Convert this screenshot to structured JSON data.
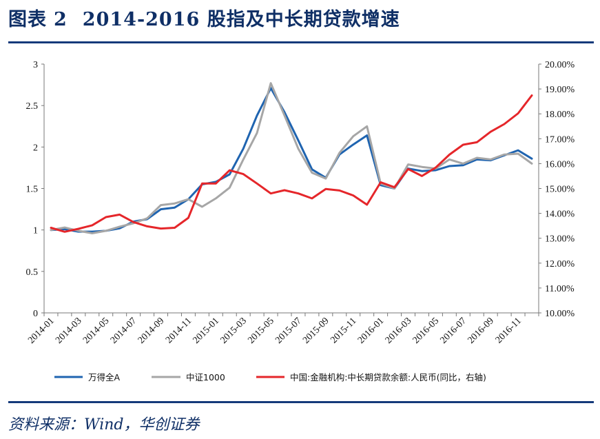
{
  "figure": {
    "label": "图表",
    "number": "2",
    "title": "2014-2016 股指及中长期贷款增速",
    "source": "资料来源：Wind，华创证券"
  },
  "colors": {
    "title": "#0f2f66",
    "rule": "#14397a",
    "series_blue": "#1f64b0",
    "series_gray": "#a6a6a6",
    "series_red": "#e5262a"
  },
  "chart_data": {
    "type": "line",
    "x": [
      "2014-01",
      "2014-02",
      "2014-03",
      "2014-04",
      "2014-05",
      "2014-06",
      "2014-07",
      "2014-08",
      "2014-09",
      "2014-10",
      "2014-11",
      "2014-12",
      "2015-01",
      "2015-02",
      "2015-03",
      "2015-04",
      "2015-05",
      "2015-06",
      "2015-07",
      "2015-08",
      "2015-09",
      "2015-10",
      "2015-11",
      "2015-12",
      "2016-01",
      "2016-02",
      "2016-03",
      "2016-04",
      "2016-05",
      "2016-06",
      "2016-07",
      "2016-08",
      "2016-09",
      "2016-10",
      "2016-11",
      "2016-12"
    ],
    "x_tick_labels": [
      "2014-01",
      "2014-03",
      "2014-05",
      "2014-07",
      "2014-09",
      "2014-11",
      "2015-01",
      "2015-03",
      "2015-05",
      "2015-07",
      "2015-09",
      "2015-11",
      "2016-01",
      "2016-03",
      "2016-05",
      "2016-07",
      "2016-09",
      "2016-11"
    ],
    "y_left": {
      "min": 0,
      "max": 3,
      "ticks": [
        "0",
        "0.5",
        "1",
        "1.5",
        "2",
        "2.5",
        "3"
      ]
    },
    "y_right": {
      "min": 10,
      "max": 20,
      "ticks": [
        "10.00%",
        "11.00%",
        "12.00%",
        "13.00%",
        "14.00%",
        "15.00%",
        "16.00%",
        "17.00%",
        "18.00%",
        "19.00%",
        "20.00%"
      ]
    },
    "series": [
      {
        "name": "万得全A",
        "axis": "left",
        "color": "#1f64b0",
        "values": [
          1.0,
          1.01,
          0.98,
          0.98,
          0.99,
          1.02,
          1.1,
          1.13,
          1.25,
          1.27,
          1.37,
          1.55,
          1.58,
          1.67,
          1.98,
          2.38,
          2.71,
          2.42,
          2.08,
          1.73,
          1.63,
          1.91,
          2.03,
          2.14,
          1.54,
          1.5,
          1.74,
          1.71,
          1.72,
          1.77,
          1.78,
          1.85,
          1.84,
          1.9,
          1.96,
          1.86
        ]
      },
      {
        "name": "中证1000",
        "axis": "left",
        "color": "#a6a6a6",
        "values": [
          1.0,
          1.03,
          0.99,
          0.96,
          0.99,
          1.04,
          1.08,
          1.14,
          1.3,
          1.32,
          1.37,
          1.28,
          1.38,
          1.51,
          1.85,
          2.17,
          2.77,
          2.38,
          1.98,
          1.69,
          1.62,
          1.93,
          2.13,
          2.25,
          1.56,
          1.5,
          1.79,
          1.76,
          1.74,
          1.85,
          1.8,
          1.87,
          1.85,
          1.91,
          1.92,
          1.8
        ]
      },
      {
        "name": "中国:金融机构:中长期贷款余额:人民币(同比，右轴)",
        "axis": "right",
        "color": "#e5262a",
        "values": [
          13.42,
          13.26,
          13.38,
          13.52,
          13.85,
          13.95,
          13.65,
          13.48,
          13.39,
          13.42,
          13.82,
          15.2,
          15.2,
          15.73,
          15.58,
          15.2,
          14.8,
          14.93,
          14.8,
          14.6,
          14.98,
          14.92,
          14.72,
          14.35,
          15.25,
          15.05,
          15.78,
          15.5,
          15.84,
          16.36,
          16.76,
          16.86,
          17.28,
          17.59,
          18.02,
          18.74
        ]
      }
    ],
    "legend_position": "bottom"
  }
}
